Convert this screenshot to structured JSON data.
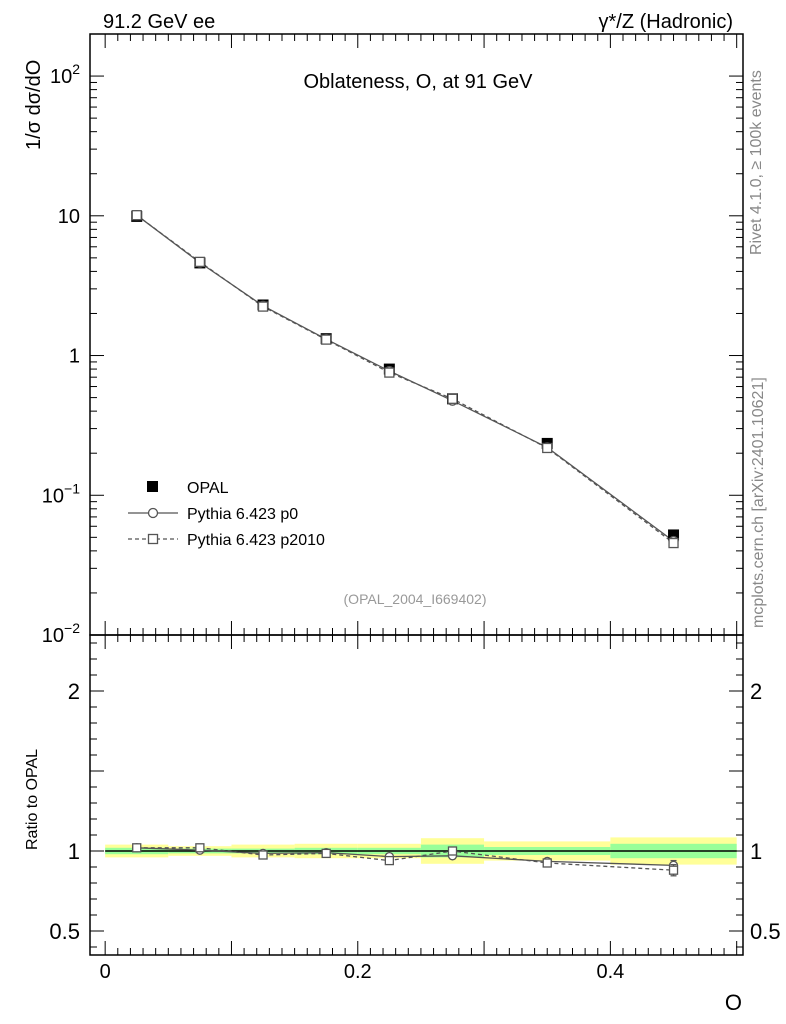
{
  "header": {
    "left": "91.2 GeV ee",
    "right": "γ*/Z (Hadronic)"
  },
  "side_text": {
    "rivet": "Rivet 4.1.0, ≥ 100k events",
    "mcplots": "mcplots.cern.ch [arXiv:2401.10621]"
  },
  "colors": {
    "data": "#000000",
    "mc": "#555555",
    "band_yellow": "#ffff99",
    "band_green": "#99ff99"
  },
  "chart_data": [
    {
      "type": "scatter",
      "panel": "main",
      "title": "Oblateness, O, at 91 GeV",
      "ylabel": "1/σ  dσ/dO",
      "yscale": "log",
      "ylim": [
        0.01,
        200
      ],
      "xlim": [
        -0.012,
        0.505
      ],
      "y_ticks": [
        {
          "value": 100,
          "label": "10",
          "exp": "2"
        },
        {
          "value": 10,
          "label": "10",
          "exp": ""
        },
        {
          "value": 1,
          "label": "1",
          "exp": ""
        },
        {
          "value": 0.1,
          "label": "10",
          "exp": "−1"
        },
        {
          "value": 0.01,
          "label": "10",
          "exp": "−2"
        }
      ],
      "watermark": "(OPAL_2004_I669402)",
      "bins": [
        {
          "x": 0.025,
          "xlow": 0.0,
          "xhigh": 0.05
        },
        {
          "x": 0.075,
          "xlow": 0.05,
          "xhigh": 0.1
        },
        {
          "x": 0.125,
          "xlow": 0.1,
          "xhigh": 0.15
        },
        {
          "x": 0.175,
          "xlow": 0.15,
          "xhigh": 0.2
        },
        {
          "x": 0.225,
          "xlow": 0.2,
          "xhigh": 0.25
        },
        {
          "x": 0.275,
          "xlow": 0.25,
          "xhigh": 0.3
        },
        {
          "x": 0.35,
          "xlow": 0.3,
          "xhigh": 0.4
        },
        {
          "x": 0.45,
          "xlow": 0.4,
          "xhigh": 0.5
        }
      ],
      "series": [
        {
          "name": "OPAL",
          "style": "data",
          "values": [
            9.9,
            4.6,
            2.3,
            1.32,
            0.8,
            0.49,
            0.235,
            0.052
          ]
        },
        {
          "name": "Pythia 6.423 p0",
          "style": "solid-circle",
          "values": [
            10.1,
            4.62,
            2.27,
            1.31,
            0.775,
            0.475,
            0.22,
            0.047
          ]
        },
        {
          "name": "Pythia 6.423 p2010",
          "style": "dashed-square",
          "values": [
            10.1,
            4.68,
            2.24,
            1.3,
            0.755,
            0.49,
            0.218,
            0.0455
          ]
        }
      ]
    },
    {
      "type": "line",
      "panel": "ratio",
      "ylabel": "Ratio to OPAL",
      "xlabel": "O",
      "ylim": [
        0.35,
        2.35
      ],
      "y_ticks": [
        {
          "value": 0.5,
          "label": "0.5"
        },
        {
          "value": 1,
          "label": "1"
        },
        {
          "value": 2,
          "label": "2"
        }
      ],
      "x_ticks": [
        {
          "value": 0,
          "label": "0"
        },
        {
          "value": 0.2,
          "label": "0.2"
        },
        {
          "value": 0.4,
          "label": "0.4"
        }
      ],
      "bands": [
        {
          "xlow": 0.0,
          "xhigh": 0.05,
          "stat": 0.02,
          "total": 0.04
        },
        {
          "xlow": 0.05,
          "xhigh": 0.1,
          "stat": 0.015,
          "total": 0.03
        },
        {
          "xlow": 0.1,
          "xhigh": 0.15,
          "stat": 0.015,
          "total": 0.04
        },
        {
          "xlow": 0.15,
          "xhigh": 0.2,
          "stat": 0.02,
          "total": 0.045
        },
        {
          "xlow": 0.2,
          "xhigh": 0.25,
          "stat": 0.02,
          "total": 0.045
        },
        {
          "xlow": 0.25,
          "xhigh": 0.3,
          "stat": 0.04,
          "total": 0.08
        },
        {
          "xlow": 0.3,
          "xhigh": 0.4,
          "stat": 0.025,
          "total": 0.06
        },
        {
          "xlow": 0.4,
          "xhigh": 0.5,
          "stat": 0.045,
          "total": 0.085
        }
      ],
      "series": [
        {
          "name": "Pythia 6.423 p0",
          "style": "solid-circle",
          "values": [
            1.02,
            1.005,
            0.985,
            0.99,
            0.965,
            0.97,
            0.935,
            0.91
          ],
          "errors": [
            0.003,
            0.003,
            0.004,
            0.004,
            0.005,
            0.005,
            0.008,
            0.03
          ]
        },
        {
          "name": "Pythia 6.423 p2010",
          "style": "dashed-square",
          "values": [
            1.02,
            1.02,
            0.975,
            0.985,
            0.94,
            1.0,
            0.925,
            0.88
          ],
          "errors": [
            0.003,
            0.003,
            0.004,
            0.004,
            0.005,
            0.005,
            0.008,
            0.035
          ]
        }
      ]
    }
  ]
}
